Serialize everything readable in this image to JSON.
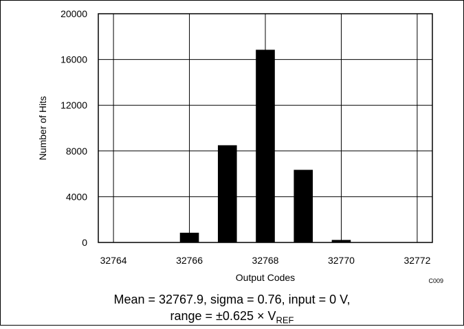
{
  "chart_data": {
    "type": "bar",
    "title": "",
    "xlabel": "Output Codes",
    "ylabel": "Number of Hits",
    "xlim": [
      32763.6,
      32772.4
    ],
    "ylim": [
      0,
      20000
    ],
    "xticks": [
      32764,
      32766,
      32768,
      32770,
      32772
    ],
    "yticks": [
      0,
      4000,
      8000,
      12000,
      16000,
      20000
    ],
    "grid": true,
    "categories": [
      32764,
      32765,
      32766,
      32767,
      32768,
      32769,
      32770,
      32771,
      32772
    ],
    "values": [
      0,
      20,
      850,
      8500,
      16850,
      6350,
      220,
      10,
      0
    ],
    "bar_color": "#000000",
    "figure_code": "C009"
  },
  "caption": {
    "line1": "Mean = 32767.9, sigma = 0.76, input = 0 V,",
    "line2_prefix": "range = ±0.625 × V",
    "line2_sub": "REF"
  }
}
